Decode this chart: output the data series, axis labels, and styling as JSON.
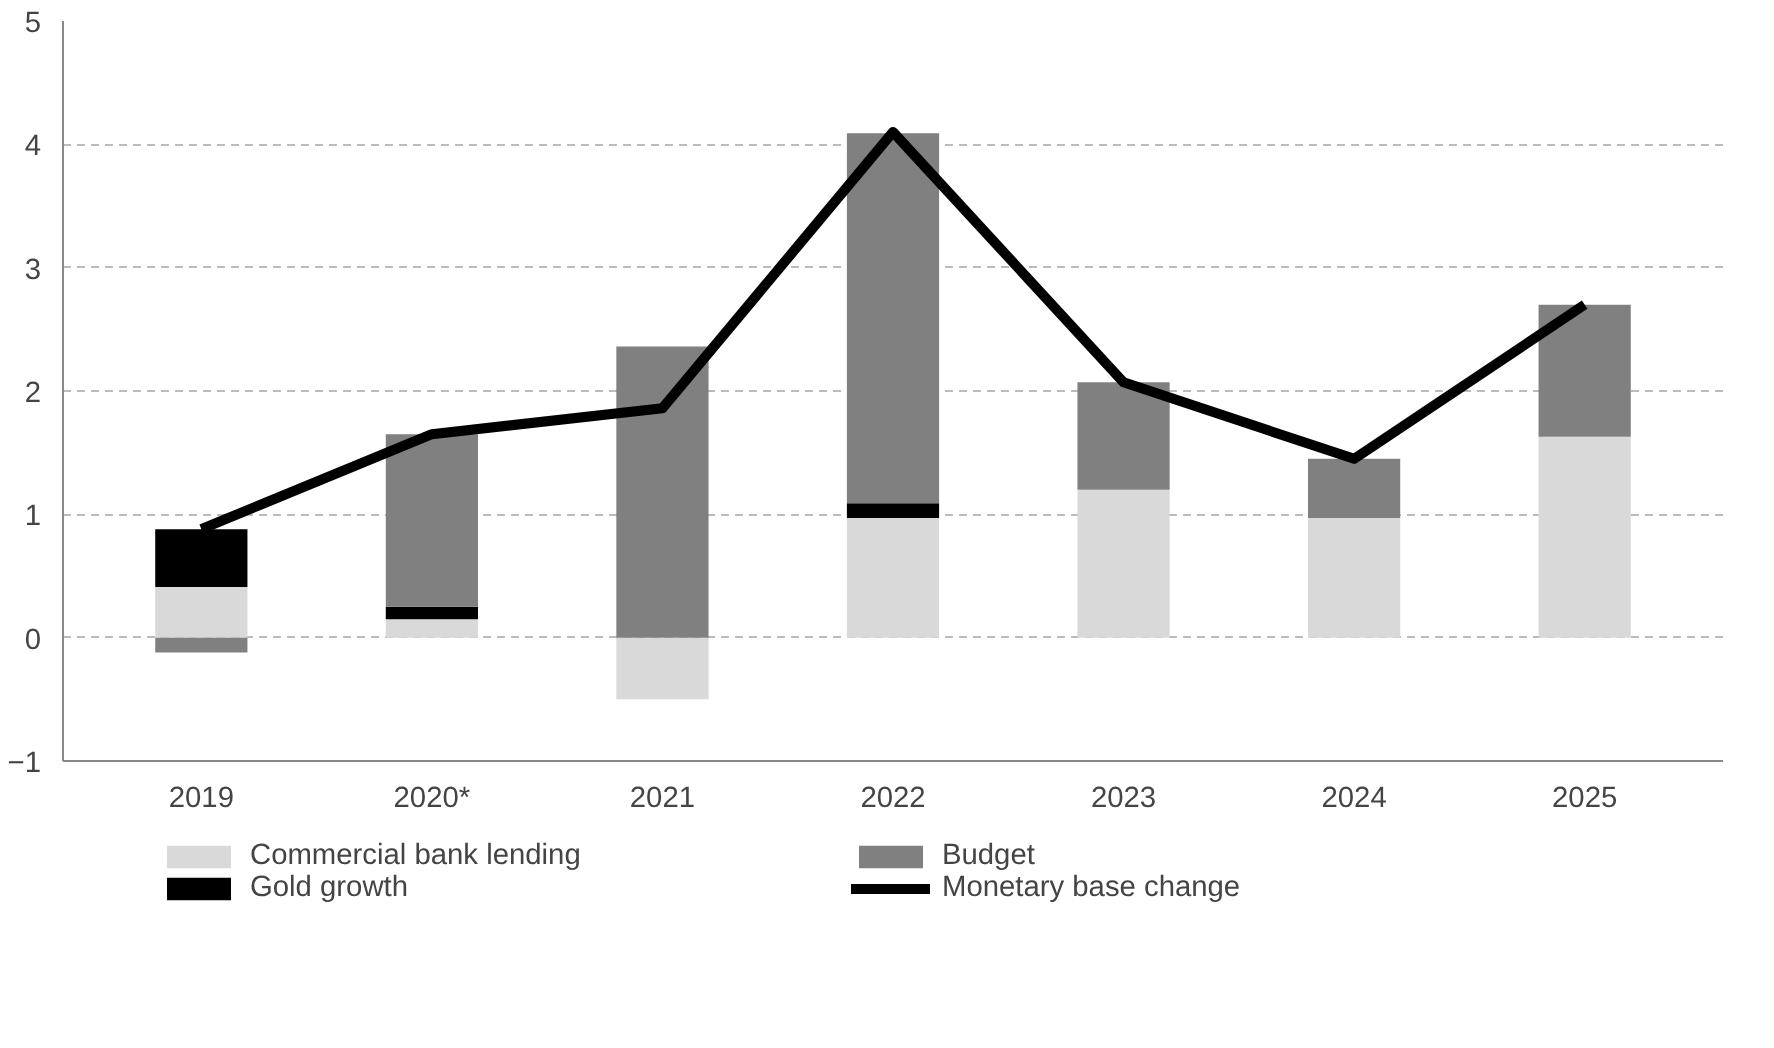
{
  "chart_data": {
    "type": "bar",
    "stacked": true,
    "categories": [
      "2019",
      "2020*",
      "2021",
      "2022",
      "2023",
      "2024",
      "2025"
    ],
    "series": [
      {
        "name": "Commercial bank lending",
        "color": "#d9d9d9",
        "values": [
          0.41,
          0.15,
          -0.5,
          0.97,
          1.2,
          0.97,
          1.63
        ]
      },
      {
        "name": "Gold growth",
        "color": "#000000",
        "values": [
          0.47,
          0.1,
          null,
          0.12,
          null,
          null,
          null
        ]
      },
      {
        "name": "Budget",
        "color": "#808080",
        "values": [
          -0.12,
          1.4,
          2.36,
          3.0,
          0.87,
          0.48,
          1.07
        ]
      },
      {
        "name": "Monetary base change",
        "color": "#000000",
        "type": "line",
        "values": [
          0.88,
          1.65,
          1.86,
          4.1,
          2.07,
          1.45,
          2.7
        ]
      }
    ],
    "ylim": [
      -1,
      5
    ],
    "yticks": [
      {
        "value": -1,
        "label": "−1"
      },
      0,
      1,
      2,
      3,
      4,
      5
    ],
    "grid": "y",
    "legend": "bottom"
  }
}
